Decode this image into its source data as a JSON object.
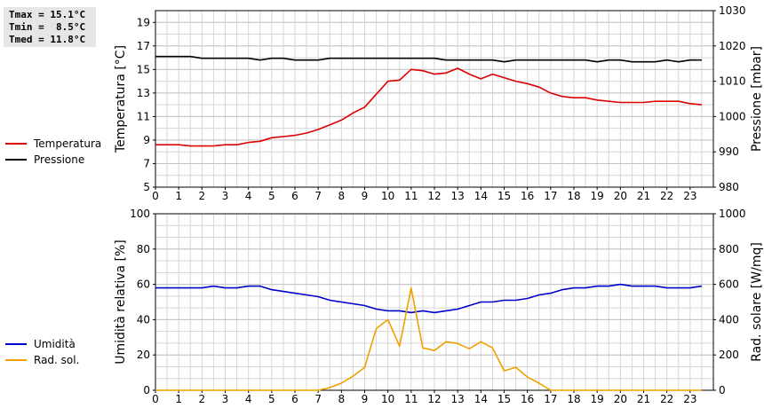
{
  "stats": {
    "tmax": "Tmax = 15.1°C",
    "tmin": "Tmin =  8.5°C",
    "tmed": "Tmed = 11.8°C"
  },
  "chart_data": [
    {
      "type": "line",
      "title": "",
      "xlabel": "",
      "x": [
        0,
        0.5,
        1,
        1.5,
        2,
        2.5,
        3,
        3.5,
        4,
        4.5,
        5,
        5.5,
        6,
        6.5,
        7,
        7.5,
        8,
        8.5,
        9,
        9.5,
        10,
        10.5,
        11,
        11.5,
        12,
        12.5,
        13,
        13.5,
        14,
        14.5,
        15,
        15.5,
        16,
        16.5,
        17,
        17.5,
        18,
        18.5,
        19,
        19.5,
        20,
        20.5,
        21,
        21.5,
        22,
        22.5,
        23,
        23.5
      ],
      "xticks": [
        0,
        1,
        2,
        3,
        4,
        5,
        6,
        7,
        8,
        9,
        10,
        11,
        12,
        13,
        14,
        15,
        16,
        17,
        18,
        19,
        20,
        21,
        22,
        23
      ],
      "xlim": [
        0,
        24
      ],
      "ylabel": "Temperatura [°C]",
      "ylim": [
        5,
        20
      ],
      "yticks": [
        5,
        7,
        9,
        11,
        13,
        15,
        17,
        19
      ],
      "y2label": "Pressione [mbar]",
      "y2lim": [
        980,
        1030
      ],
      "y2ticks": [
        980,
        990,
        1000,
        1010,
        1020,
        1030
      ],
      "grid": true,
      "legend_position": "left",
      "series": [
        {
          "name": "Temperatura",
          "color": "#dd0000",
          "axis": "left",
          "values": [
            8.6,
            8.6,
            8.6,
            8.5,
            8.5,
            8.5,
            8.6,
            8.6,
            8.8,
            8.9,
            9.2,
            9.3,
            9.4,
            9.6,
            9.9,
            10.3,
            10.7,
            11.3,
            11.8,
            12.9,
            14.0,
            14.1,
            15.0,
            14.9,
            14.6,
            14.7,
            15.1,
            14.6,
            14.2,
            14.6,
            14.3,
            14.0,
            13.8,
            13.5,
            13.0,
            12.7,
            12.6,
            12.6,
            12.4,
            12.3,
            12.2,
            12.2,
            12.2,
            12.3,
            12.3,
            12.3,
            12.1,
            12.0
          ]
        },
        {
          "name": "Pressione",
          "color": "#000000",
          "axis": "right",
          "values": [
            1017,
            1017,
            1017,
            1017,
            1016.5,
            1016.5,
            1016.5,
            1016.5,
            1016.5,
            1016,
            1016.5,
            1016.5,
            1016,
            1016,
            1016,
            1016.5,
            1016.5,
            1016.5,
            1016.5,
            1016.5,
            1016.5,
            1016.5,
            1016.5,
            1016.5,
            1016.5,
            1016,
            1016,
            1016,
            1016,
            1016,
            1015.5,
            1016,
            1016,
            1016,
            1016,
            1016,
            1016,
            1016,
            1015.5,
            1016,
            1016,
            1015.5,
            1015.5,
            1015.5,
            1016,
            1015.5,
            1016,
            1016
          ]
        }
      ]
    },
    {
      "type": "line",
      "title": "",
      "xlabel": "",
      "x": [
        0,
        0.5,
        1,
        1.5,
        2,
        2.5,
        3,
        3.5,
        4,
        4.5,
        5,
        5.5,
        6,
        6.5,
        7,
        7.5,
        8,
        8.5,
        9,
        9.5,
        10,
        10.5,
        11,
        11.5,
        12,
        12.5,
        13,
        13.5,
        14,
        14.5,
        15,
        15.5,
        16,
        16.5,
        17,
        17.5,
        18,
        18.5,
        19,
        19.5,
        20,
        20.5,
        21,
        21.5,
        22,
        22.5,
        23,
        23.5
      ],
      "xticks": [
        0,
        1,
        2,
        3,
        4,
        5,
        6,
        7,
        8,
        9,
        10,
        11,
        12,
        13,
        14,
        15,
        16,
        17,
        18,
        19,
        20,
        21,
        22,
        23
      ],
      "xlim": [
        0,
        24
      ],
      "ylabel": "Umidità relativa [%]",
      "ylim": [
        0,
        100
      ],
      "yticks": [
        0,
        20,
        40,
        60,
        80,
        100
      ],
      "y2label": "Rad. solare [W/mq]",
      "y2lim": [
        0,
        1000
      ],
      "y2ticks": [
        0,
        200,
        400,
        600,
        800,
        1000
      ],
      "grid": true,
      "legend_position": "left",
      "series": [
        {
          "name": "Umidità",
          "color": "#0000cc",
          "axis": "left",
          "values": [
            58,
            58,
            58,
            58,
            58,
            59,
            58,
            58,
            59,
            59,
            57,
            56,
            55,
            54,
            53,
            51,
            50,
            49,
            48,
            46,
            45,
            45,
            44,
            45,
            44,
            45,
            46,
            48,
            50,
            50,
            51,
            51,
            52,
            54,
            55,
            57,
            58,
            58,
            59,
            59,
            60,
            59,
            59,
            59,
            58,
            58,
            58,
            59
          ]
        },
        {
          "name": "Rad. sol.",
          "color": "#f0a000",
          "axis": "right",
          "values": [
            0,
            0,
            0,
            0,
            0,
            0,
            0,
            0,
            0,
            0,
            0,
            0,
            0,
            0,
            0,
            15,
            40,
            80,
            130,
            350,
            400,
            250,
            580,
            240,
            225,
            275,
            265,
            235,
            275,
            240,
            110,
            130,
            75,
            40,
            0,
            0,
            0,
            0,
            0,
            0,
            0,
            0,
            0,
            0,
            0,
            0,
            0,
            0
          ]
        }
      ]
    }
  ]
}
